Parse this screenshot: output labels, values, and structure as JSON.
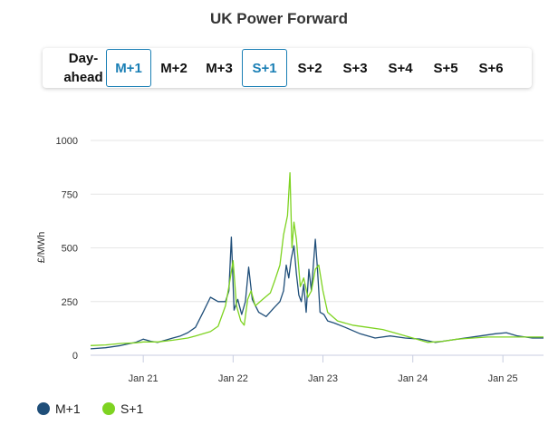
{
  "header": {
    "title": "UK Power Forward"
  },
  "tabs": [
    {
      "label_line1": "Day-",
      "label_line2": "ahead",
      "active": false
    },
    {
      "label": "M+1",
      "active": true
    },
    {
      "label": "M+2",
      "active": false
    },
    {
      "label": "M+3",
      "active": false
    },
    {
      "label": "S+1",
      "active": true
    },
    {
      "label": "S+2",
      "active": false
    },
    {
      "label": "S+3",
      "active": false
    },
    {
      "label": "S+4",
      "active": false
    },
    {
      "label": "S+5",
      "active": false
    },
    {
      "label": "S+6",
      "active": false
    }
  ],
  "colors": {
    "m1": "#1f4e79",
    "s1": "#7ed321",
    "accent": "#1a7fb5"
  },
  "chart_data": {
    "type": "line",
    "title": "UK Power Forward",
    "xlabel": "",
    "ylabel": "£/MWh",
    "ylim": [
      0,
      1000
    ],
    "xlim": [
      "2020-06-01",
      "2025-06-15"
    ],
    "yticks": [
      0,
      250,
      500,
      750,
      1000
    ],
    "yticklabels": [
      "0",
      "250",
      "500",
      "750",
      "1000"
    ],
    "xticks": [
      "2021-01-01",
      "2022-01-01",
      "2023-01-01",
      "2024-01-01",
      "2025-01-01"
    ],
    "xticklabels": [
      "Jan 21",
      "Jan 22",
      "Jan 23",
      "Jan 24",
      "Jan 25"
    ],
    "grid": "horizontal",
    "legend_position": "bottom-left",
    "series": [
      {
        "name": "M+1",
        "color": "#1f4e79",
        "x": [
          "2020-06-01",
          "2020-08-01",
          "2020-10-01",
          "2020-12-01",
          "2021-01-01",
          "2021-02-01",
          "2021-03-01",
          "2021-04-01",
          "2021-05-01",
          "2021-06-01",
          "2021-07-01",
          "2021-08-01",
          "2021-09-01",
          "2021-10-01",
          "2021-11-01",
          "2021-12-01",
          "2021-12-15",
          "2021-12-25",
          "2022-01-05",
          "2022-01-20",
          "2022-02-05",
          "2022-02-20",
          "2022-03-05",
          "2022-03-20",
          "2022-04-15",
          "2022-05-15",
          "2022-06-15",
          "2022-07-10",
          "2022-07-25",
          "2022-08-05",
          "2022-08-15",
          "2022-08-25",
          "2022-09-05",
          "2022-09-15",
          "2022-09-25",
          "2022-10-05",
          "2022-10-15",
          "2022-10-25",
          "2022-11-05",
          "2022-11-15",
          "2022-12-01",
          "2022-12-10",
          "2022-12-20",
          "2023-01-05",
          "2023-01-20",
          "2023-02-15",
          "2023-04-01",
          "2023-06-01",
          "2023-08-01",
          "2023-10-01",
          "2023-12-01",
          "2024-02-01",
          "2024-04-01",
          "2024-06-01",
          "2024-08-01",
          "2024-10-01",
          "2024-12-01",
          "2025-01-15",
          "2025-03-01",
          "2025-05-01",
          "2025-06-15"
        ],
        "values": [
          30,
          35,
          45,
          60,
          75,
          65,
          60,
          70,
          80,
          90,
          105,
          130,
          200,
          270,
          250,
          250,
          300,
          550,
          210,
          260,
          190,
          250,
          410,
          260,
          200,
          180,
          220,
          250,
          300,
          420,
          360,
          450,
          510,
          380,
          280,
          250,
          330,
          200,
          400,
          300,
          540,
          400,
          200,
          190,
          160,
          150,
          130,
          100,
          80,
          90,
          80,
          75,
          60,
          70,
          80,
          90,
          100,
          105,
          90,
          80,
          80
        ]
      },
      {
        "name": "S+1",
        "color": "#7ed321",
        "x": [
          "2020-06-01",
          "2020-08-01",
          "2020-10-01",
          "2020-12-01",
          "2021-01-01",
          "2021-03-01",
          "2021-05-01",
          "2021-07-01",
          "2021-08-01",
          "2021-09-01",
          "2021-10-01",
          "2021-11-01",
          "2021-12-01",
          "2021-12-15",
          "2022-01-01",
          "2022-01-15",
          "2022-02-01",
          "2022-02-15",
          "2022-03-01",
          "2022-03-15",
          "2022-04-01",
          "2022-05-01",
          "2022-06-01",
          "2022-06-20",
          "2022-07-10",
          "2022-07-25",
          "2022-08-10",
          "2022-08-20",
          "2022-08-28",
          "2022-09-05",
          "2022-09-15",
          "2022-10-01",
          "2022-10-15",
          "2022-11-01",
          "2022-11-15",
          "2022-12-01",
          "2022-12-15",
          "2023-01-01",
          "2023-01-20",
          "2023-03-01",
          "2023-05-01",
          "2023-07-01",
          "2023-09-01",
          "2023-11-01",
          "2024-01-01",
          "2024-03-01",
          "2024-05-01",
          "2024-07-01",
          "2024-09-01",
          "2024-11-01",
          "2025-01-01",
          "2025-03-01",
          "2025-05-01",
          "2025-06-15"
        ],
        "values": [
          45,
          48,
          55,
          58,
          62,
          62,
          70,
          80,
          90,
          100,
          110,
          135,
          230,
          320,
          440,
          230,
          160,
          140,
          260,
          300,
          230,
          260,
          290,
          350,
          420,
          560,
          650,
          850,
          500,
          620,
          540,
          320,
          360,
          270,
          300,
          400,
          420,
          300,
          200,
          160,
          140,
          130,
          120,
          100,
          80,
          60,
          65,
          75,
          80,
          85,
          85,
          85,
          85,
          85
        ]
      }
    ]
  }
}
